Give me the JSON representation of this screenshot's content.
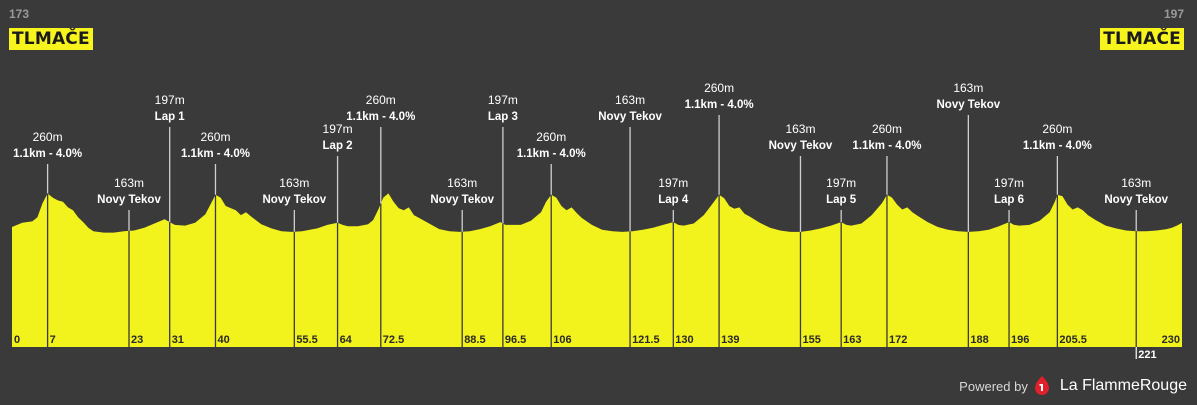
{
  "header": {
    "start": {
      "elevation": "173",
      "name": "TLMAČE"
    },
    "finish": {
      "elevation": "197",
      "name": "TLMAČE"
    }
  },
  "footer": {
    "powered_by": "Powered by",
    "brand": "La FlammeRouge"
  },
  "colors": {
    "background": "#3a3a3a",
    "profile_fill": "#f2f21c",
    "text": "#ffffff"
  },
  "chart_data": {
    "type": "area",
    "xlim": [
      0,
      230
    ],
    "ylim": [
      100,
      300
    ],
    "profile": [
      [
        0,
        190
      ],
      [
        2,
        196
      ],
      [
        4,
        198
      ],
      [
        5,
        204
      ],
      [
        6,
        224
      ],
      [
        7,
        238
      ],
      [
        8,
        232
      ],
      [
        9,
        228
      ],
      [
        10,
        226
      ],
      [
        11,
        218
      ],
      [
        12,
        214
      ],
      [
        13,
        204
      ],
      [
        14,
        197
      ],
      [
        15,
        189
      ],
      [
        16,
        184
      ],
      [
        18,
        182
      ],
      [
        20,
        182
      ],
      [
        22,
        184
      ],
      [
        24,
        185
      ],
      [
        26,
        189
      ],
      [
        28,
        195
      ],
      [
        30,
        201
      ],
      [
        31,
        197
      ],
      [
        32,
        193
      ],
      [
        34,
        192
      ],
      [
        36,
        196
      ],
      [
        38,
        208
      ],
      [
        39,
        222
      ],
      [
        40,
        236
      ],
      [
        41,
        232
      ],
      [
        42,
        220
      ],
      [
        43,
        217
      ],
      [
        44,
        214
      ],
      [
        45,
        207
      ],
      [
        46,
        211
      ],
      [
        47,
        205
      ],
      [
        49,
        194
      ],
      [
        51,
        188
      ],
      [
        53,
        184
      ],
      [
        55,
        183
      ],
      [
        57,
        184
      ],
      [
        60,
        188
      ],
      [
        62,
        193
      ],
      [
        64,
        196
      ],
      [
        65,
        193
      ],
      [
        66,
        191
      ],
      [
        68,
        191
      ],
      [
        70,
        194
      ],
      [
        71,
        200
      ],
      [
        72,
        215
      ],
      [
        73,
        232
      ],
      [
        74,
        238
      ],
      [
        75,
        226
      ],
      [
        76,
        217
      ],
      [
        77,
        214
      ],
      [
        78,
        218
      ],
      [
        79,
        207
      ],
      [
        80,
        203
      ],
      [
        82,
        195
      ],
      [
        84,
        187
      ],
      [
        86,
        184
      ],
      [
        88,
        183
      ],
      [
        90,
        184
      ],
      [
        92,
        187
      ],
      [
        94,
        191
      ],
      [
        96,
        197
      ],
      [
        97,
        193
      ],
      [
        98,
        193
      ],
      [
        100,
        193
      ],
      [
        102,
        199
      ],
      [
        104,
        211
      ],
      [
        105,
        226
      ],
      [
        106,
        236
      ],
      [
        107,
        232
      ],
      [
        108,
        220
      ],
      [
        109,
        214
      ],
      [
        110,
        218
      ],
      [
        111,
        210
      ],
      [
        112,
        203
      ],
      [
        114,
        193
      ],
      [
        116,
        186
      ],
      [
        118,
        184
      ],
      [
        120,
        183
      ],
      [
        122,
        184
      ],
      [
        124,
        186
      ],
      [
        126,
        189
      ],
      [
        128,
        193
      ],
      [
        130,
        197
      ],
      [
        131,
        193
      ],
      [
        132,
        192
      ],
      [
        134,
        195
      ],
      [
        136,
        207
      ],
      [
        138,
        226
      ],
      [
        139,
        236
      ],
      [
        140,
        231
      ],
      [
        141,
        220
      ],
      [
        142,
        216
      ],
      [
        143,
        218
      ],
      [
        144,
        209
      ],
      [
        145,
        205
      ],
      [
        147,
        196
      ],
      [
        149,
        189
      ],
      [
        151,
        185
      ],
      [
        153,
        183
      ],
      [
        155,
        183
      ],
      [
        157,
        185
      ],
      [
        159,
        188
      ],
      [
        161,
        192
      ],
      [
        163,
        197
      ],
      [
        164,
        193
      ],
      [
        165,
        192
      ],
      [
        167,
        195
      ],
      [
        169,
        207
      ],
      [
        171,
        224
      ],
      [
        172,
        236
      ],
      [
        173,
        232
      ],
      [
        174,
        222
      ],
      [
        175,
        215
      ],
      [
        176,
        218
      ],
      [
        177,
        211
      ],
      [
        178,
        206
      ],
      [
        180,
        197
      ],
      [
        182,
        190
      ],
      [
        184,
        186
      ],
      [
        186,
        184
      ],
      [
        188,
        183
      ],
      [
        190,
        184
      ],
      [
        192,
        186
      ],
      [
        194,
        191
      ],
      [
        196,
        197
      ],
      [
        197,
        193
      ],
      [
        198,
        192
      ],
      [
        200,
        193
      ],
      [
        202,
        199
      ],
      [
        204,
        211
      ],
      [
        205,
        226
      ],
      [
        205.5,
        236
      ],
      [
        206.5,
        234
      ],
      [
        207.5,
        222
      ],
      [
        208.5,
        215
      ],
      [
        209.5,
        218
      ],
      [
        210.5,
        214
      ],
      [
        211.5,
        207
      ],
      [
        213,
        200
      ],
      [
        215,
        192
      ],
      [
        217,
        188
      ],
      [
        219,
        185
      ],
      [
        221,
        184
      ],
      [
        223,
        184
      ],
      [
        225,
        185
      ],
      [
        227,
        187
      ],
      [
        228,
        189
      ],
      [
        229,
        192
      ],
      [
        230,
        196
      ]
    ],
    "km_ticks": [
      "0",
      "7",
      "23",
      "31",
      "40",
      "55.5",
      "64",
      "72.5",
      "88.5",
      "96.5",
      "106",
      "121.5",
      "130",
      "139",
      "155",
      "163",
      "172",
      "188",
      "196",
      "205.5",
      "221",
      "230"
    ],
    "km_tick_values": [
      0,
      7,
      23,
      31,
      40,
      55.5,
      64,
      72.5,
      88.5,
      96.5,
      106,
      121.5,
      130,
      139,
      155,
      163,
      172,
      188,
      196,
      205.5,
      221,
      230
    ],
    "points": [
      {
        "km": 7,
        "elevation": "260m",
        "label": "1.1km - 4.0%",
        "level": 2
      },
      {
        "km": 23,
        "elevation": "163m",
        "label": "Novy Tekov",
        "level": 3
      },
      {
        "km": 31,
        "elevation": "197m",
        "label": "Lap 1",
        "level": 0
      },
      {
        "km": 40,
        "elevation": "260m",
        "label": "1.1km - 4.0%",
        "level": 2
      },
      {
        "km": 55.5,
        "elevation": "163m",
        "label": "Novy Tekov",
        "level": 3
      },
      {
        "km": 64,
        "elevation": "197m",
        "label": "Lap 2",
        "level": 1
      },
      {
        "km": 72.5,
        "elevation": "260m",
        "label": "1.1km - 4.0%",
        "level": 0
      },
      {
        "km": 88.5,
        "elevation": "163m",
        "label": "Novy Tekov",
        "level": 3
      },
      {
        "km": 96.5,
        "elevation": "197m",
        "label": "Lap 3",
        "level": 0
      },
      {
        "km": 106,
        "elevation": "260m",
        "label": "1.1km - 4.0%",
        "level": 2
      },
      {
        "km": 121.5,
        "elevation": "163m",
        "label": "Novy Tekov",
        "level": 0
      },
      {
        "km": 130,
        "elevation": "197m",
        "label": "Lap 4",
        "level": 3
      },
      {
        "km": 139,
        "elevation": "260m",
        "label": "1.1km - 4.0%",
        "level": -1
      },
      {
        "km": 155,
        "elevation": "163m",
        "label": "Novy Tekov",
        "level": 1
      },
      {
        "km": 163,
        "elevation": "197m",
        "label": "Lap 5",
        "level": 3
      },
      {
        "km": 172,
        "elevation": "260m",
        "label": "1.1km - 4.0%",
        "level": 1
      },
      {
        "km": 188,
        "elevation": "163m",
        "label": "Novy Tekov",
        "level": -1
      },
      {
        "km": 196,
        "elevation": "197m",
        "label": "Lap 6",
        "level": 3
      },
      {
        "km": 205.5,
        "elevation": "260m",
        "label": "1.1km - 4.0%",
        "level": 1
      },
      {
        "km": 221,
        "elevation": "163m",
        "label": "Novy Tekov",
        "level": 3
      }
    ]
  }
}
